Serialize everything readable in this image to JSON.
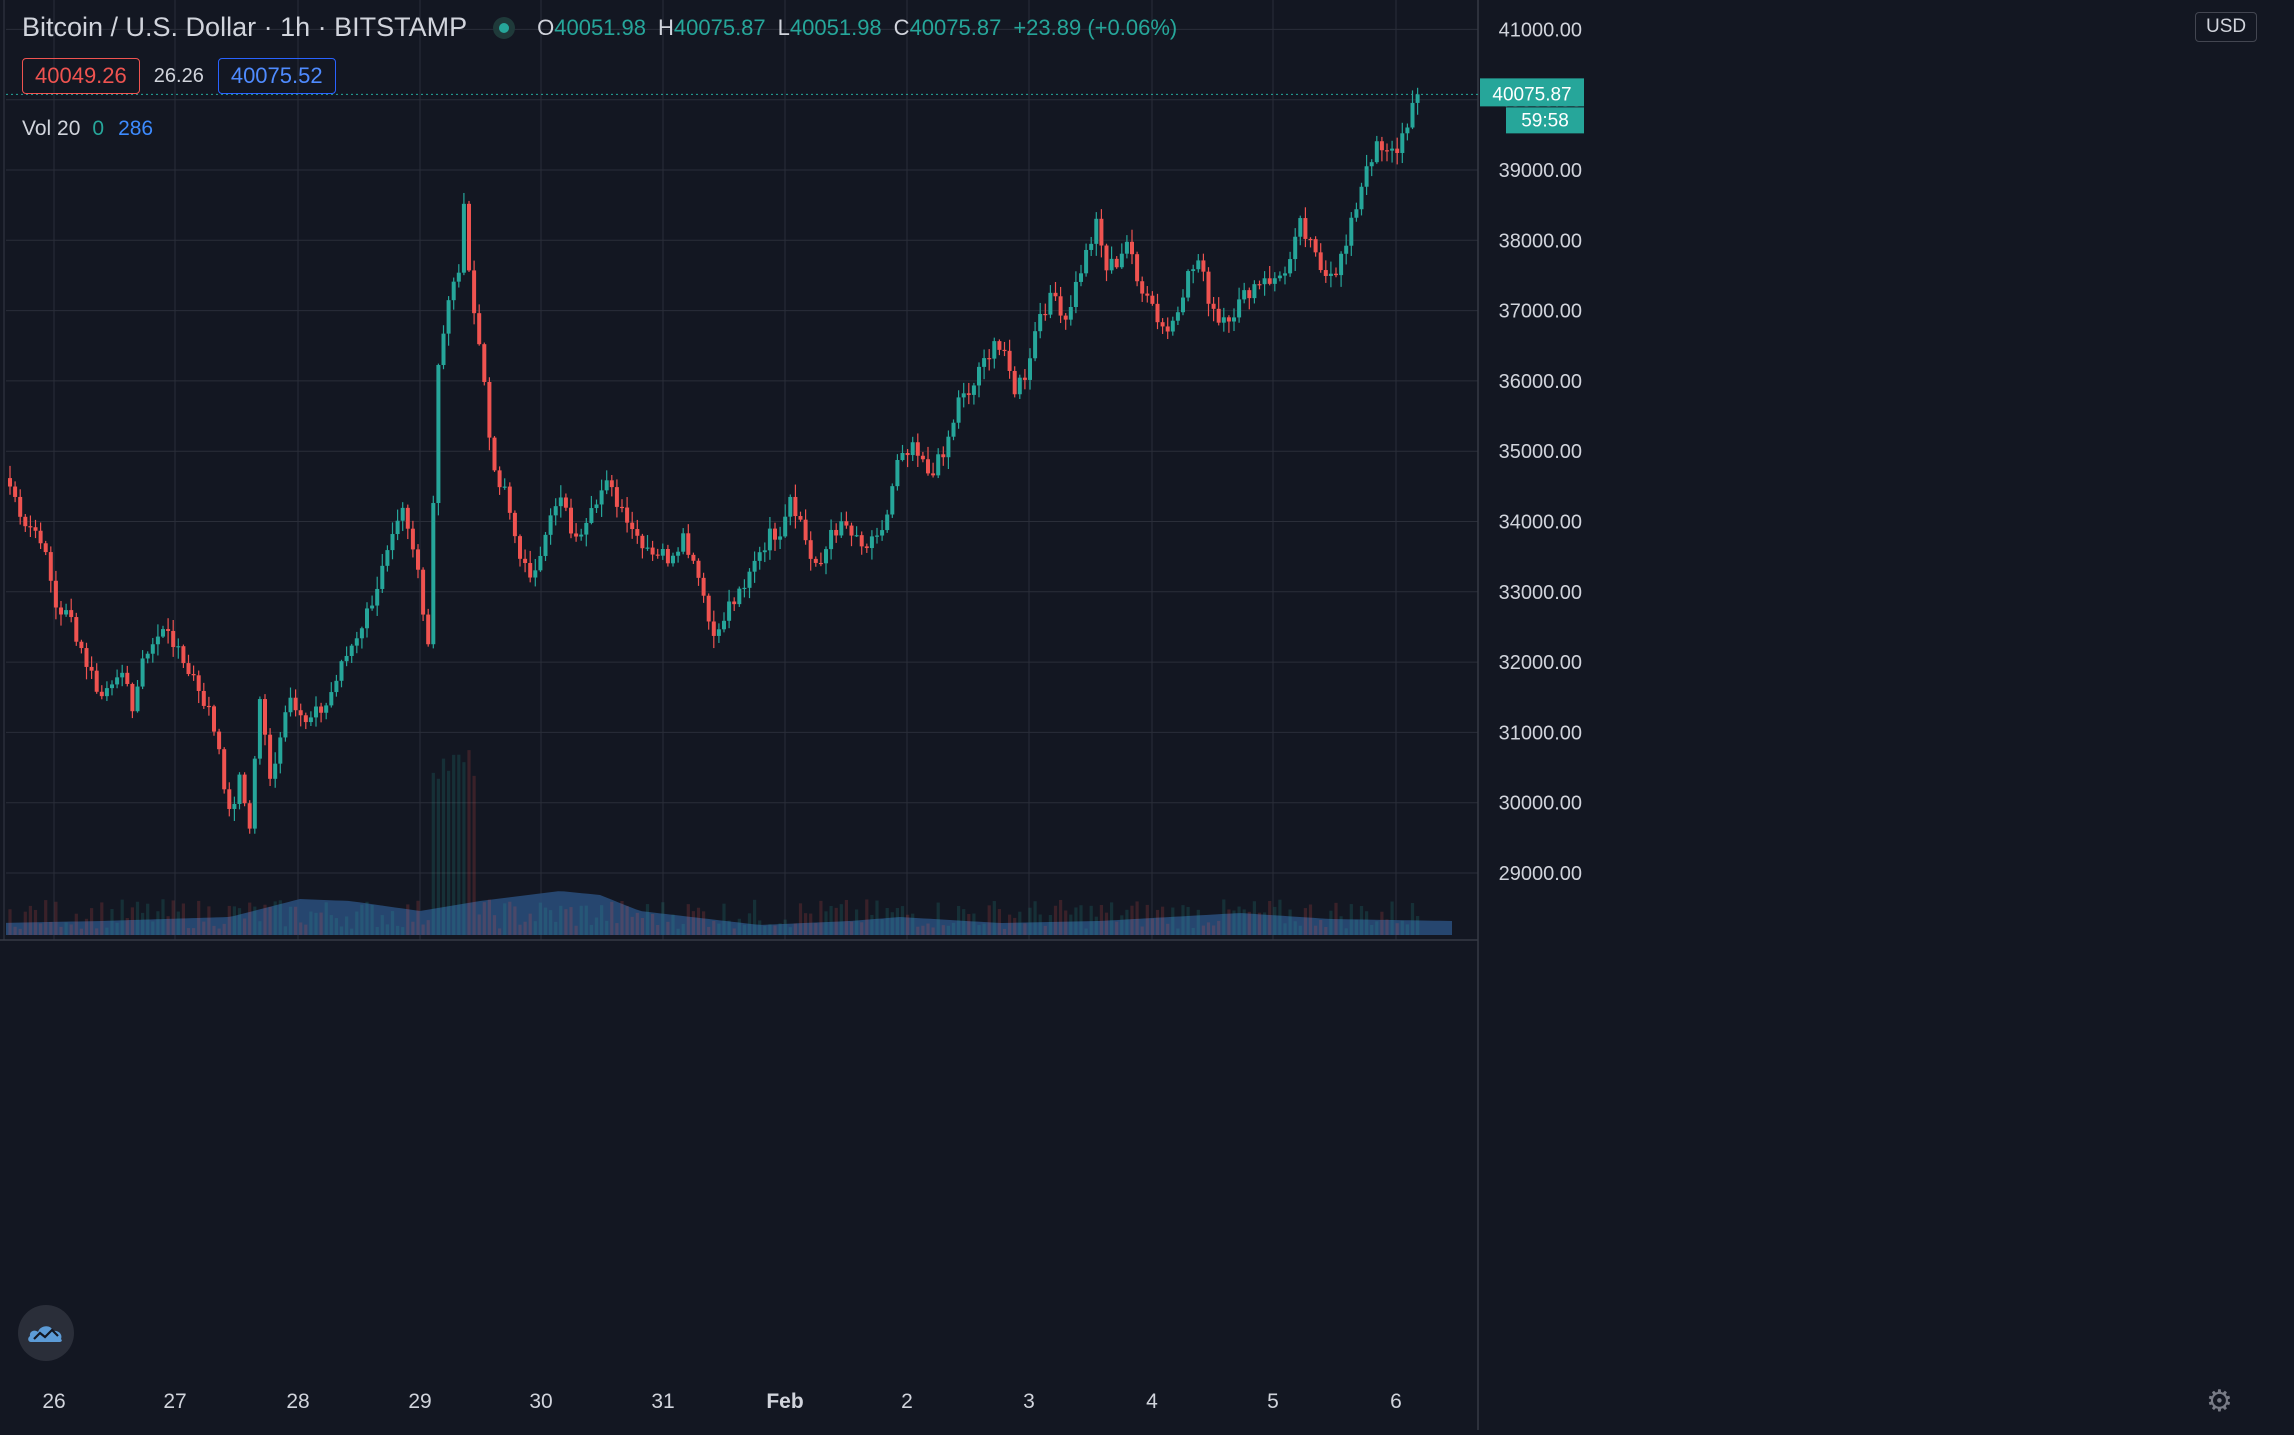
{
  "header": {
    "symbol": "Bitcoin / U.S. Dollar · 1h · BITSTAMP",
    "open_label": "O",
    "open": "40051.98",
    "high_label": "H",
    "high": "40075.87",
    "low_label": "L",
    "low": "40051.98",
    "close_label": "C",
    "close": "40075.87",
    "change": "+23.89 (+0.06%)"
  },
  "quote": {
    "bid": "40049.26",
    "spread": "26.26",
    "ask": "40075.52"
  },
  "volume": {
    "label": "Vol 20",
    "value_a": "0",
    "value_b": "286"
  },
  "currency": "USD",
  "last_price": "40075.87",
  "countdown": "59:58",
  "icons": {
    "logo": "tradingview-cloud-icon",
    "settings": "gear-icon",
    "status": "live-dot-icon"
  },
  "colors": {
    "up": "#26a69a",
    "down": "#ef5350",
    "background": "#131722",
    "grid": "#2a2e39",
    "volume_area": "#2a4f7c"
  },
  "chart_data": {
    "type": "candlestick",
    "interval": "1h",
    "ylim": [
      28300,
      41200
    ],
    "yticks": [
      "29000.00",
      "30000.00",
      "31000.00",
      "32000.00",
      "33000.00",
      "34000.00",
      "35000.00",
      "36000.00",
      "37000.00",
      "38000.00",
      "39000.00",
      "40000.00",
      "41000.00"
    ],
    "x_ticks": [
      "26",
      "27",
      "28",
      "29",
      "30",
      "31",
      "Feb",
      "2",
      "3",
      "4",
      "5",
      "6"
    ],
    "anchors": [
      {
        "t": 0,
        "v": 34500
      },
      {
        "t": 3,
        "v": 34000
      },
      {
        "t": 6,
        "v": 33800
      },
      {
        "t": 9,
        "v": 32800
      },
      {
        "t": 12,
        "v": 32600
      },
      {
        "t": 15,
        "v": 32000
      },
      {
        "t": 18,
        "v": 31500
      },
      {
        "t": 21,
        "v": 31900
      },
      {
        "t": 24,
        "v": 31400
      },
      {
        "t": 27,
        "v": 32200
      },
      {
        "t": 31,
        "v": 32500
      },
      {
        "t": 33,
        "v": 32100
      },
      {
        "t": 36,
        "v": 31800
      },
      {
        "t": 39,
        "v": 31300
      },
      {
        "t": 41,
        "v": 30800
      },
      {
        "t": 43,
        "v": 29800
      },
      {
        "t": 45,
        "v": 30300
      },
      {
        "t": 47,
        "v": 29700
      },
      {
        "t": 49,
        "v": 31500
      },
      {
        "t": 51,
        "v": 30300
      },
      {
        "t": 53,
        "v": 31000
      },
      {
        "t": 55,
        "v": 31600
      },
      {
        "t": 58,
        "v": 31100
      },
      {
        "t": 62,
        "v": 31400
      },
      {
        "t": 66,
        "v": 32100
      },
      {
        "t": 70,
        "v": 32700
      },
      {
        "t": 74,
        "v": 33500
      },
      {
        "t": 77,
        "v": 34100
      },
      {
        "t": 80,
        "v": 33300
      },
      {
        "t": 82,
        "v": 32300
      },
      {
        "t": 84,
        "v": 36300
      },
      {
        "t": 86,
        "v": 37100
      },
      {
        "t": 88,
        "v": 37600
      },
      {
        "t": 89,
        "v": 38400
      },
      {
        "t": 91,
        "v": 37000
      },
      {
        "t": 93,
        "v": 36000
      },
      {
        "t": 95,
        "v": 34600
      },
      {
        "t": 97,
        "v": 34400
      },
      {
        "t": 99,
        "v": 33800
      },
      {
        "t": 102,
        "v": 33100
      },
      {
        "t": 105,
        "v": 33900
      },
      {
        "t": 108,
        "v": 34300
      },
      {
        "t": 111,
        "v": 33700
      },
      {
        "t": 114,
        "v": 34300
      },
      {
        "t": 117,
        "v": 34500
      },
      {
        "t": 119,
        "v": 34300
      },
      {
        "t": 121,
        "v": 34100
      },
      {
        "t": 123,
        "v": 33800
      },
      {
        "t": 126,
        "v": 33600
      },
      {
        "t": 129,
        "v": 33500
      },
      {
        "t": 132,
        "v": 33800
      },
      {
        "t": 135,
        "v": 33300
      },
      {
        "t": 137,
        "v": 32600
      },
      {
        "t": 139,
        "v": 32400
      },
      {
        "t": 141,
        "v": 32800
      },
      {
        "t": 144,
        "v": 33000
      },
      {
        "t": 146,
        "v": 33500
      },
      {
        "t": 149,
        "v": 33800
      },
      {
        "t": 151,
        "v": 33900
      },
      {
        "t": 153,
        "v": 34400
      },
      {
        "t": 155,
        "v": 34000
      },
      {
        "t": 157,
        "v": 33500
      },
      {
        "t": 159,
        "v": 33300
      },
      {
        "t": 161,
        "v": 33900
      },
      {
        "t": 164,
        "v": 33900
      },
      {
        "t": 167,
        "v": 33600
      },
      {
        "t": 170,
        "v": 33700
      },
      {
        "t": 172,
        "v": 34100
      },
      {
        "t": 174,
        "v": 34800
      },
      {
        "t": 177,
        "v": 35000
      },
      {
        "t": 180,
        "v": 34700
      },
      {
        "t": 183,
        "v": 34900
      },
      {
        "t": 186,
        "v": 35700
      },
      {
        "t": 188,
        "v": 35800
      },
      {
        "t": 190,
        "v": 36100
      },
      {
        "t": 193,
        "v": 36600
      },
      {
        "t": 195,
        "v": 36300
      },
      {
        "t": 197,
        "v": 35900
      },
      {
        "t": 199,
        "v": 36100
      },
      {
        "t": 202,
        "v": 37000
      },
      {
        "t": 205,
        "v": 37200
      },
      {
        "t": 207,
        "v": 36900
      },
      {
        "t": 210,
        "v": 37600
      },
      {
        "t": 213,
        "v": 38200
      },
      {
        "t": 215,
        "v": 37600
      },
      {
        "t": 217,
        "v": 37700
      },
      {
        "t": 219,
        "v": 38000
      },
      {
        "t": 221,
        "v": 37400
      },
      {
        "t": 223,
        "v": 37300
      },
      {
        "t": 225,
        "v": 36900
      },
      {
        "t": 227,
        "v": 36700
      },
      {
        "t": 229,
        "v": 37100
      },
      {
        "t": 231,
        "v": 37500
      },
      {
        "t": 233,
        "v": 37700
      },
      {
        "t": 235,
        "v": 37200
      },
      {
        "t": 237,
        "v": 36900
      },
      {
        "t": 240,
        "v": 37000
      },
      {
        "t": 243,
        "v": 37300
      },
      {
        "t": 246,
        "v": 37500
      },
      {
        "t": 248,
        "v": 37400
      },
      {
        "t": 251,
        "v": 37700
      },
      {
        "t": 253,
        "v": 38200
      },
      {
        "t": 255,
        "v": 37900
      },
      {
        "t": 257,
        "v": 37600
      },
      {
        "t": 260,
        "v": 37600
      },
      {
        "t": 262,
        "v": 37900
      },
      {
        "t": 264,
        "v": 38500
      },
      {
        "t": 266,
        "v": 39100
      },
      {
        "t": 268,
        "v": 39300
      },
      {
        "t": 270,
        "v": 39200
      },
      {
        "t": 272,
        "v": 39300
      },
      {
        "t": 274,
        "v": 39700
      },
      {
        "t": 275,
        "v": 39900
      },
      {
        "t": 276,
        "v": 40076
      }
    ],
    "last": 40075.87
  }
}
